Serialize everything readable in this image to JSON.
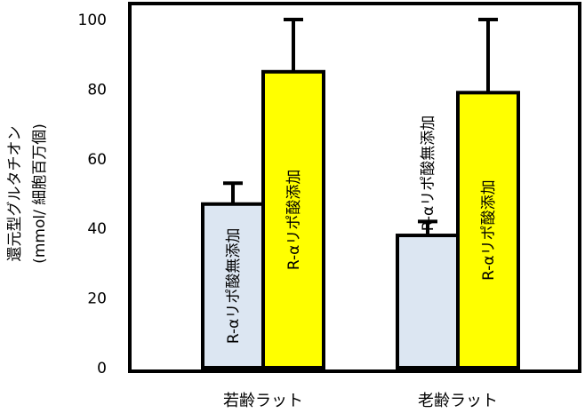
{
  "chart_data": {
    "type": "bar",
    "ylabel_line1": "還元型グルタチオン",
    "ylabel_line2": "(mmol/ 細胞百万個)",
    "ylim": [
      0,
      100
    ],
    "yticks": [
      "0",
      "20",
      "40",
      "60",
      "80",
      "100"
    ],
    "grid": false,
    "categories": [
      "若齢ラット",
      "老齢ラット"
    ],
    "series": [
      {
        "name": "R-αリポ酸無添加",
        "color": "#dce6f2",
        "values": [
          47,
          38
        ],
        "errors": [
          6,
          4
        ]
      },
      {
        "name": "R-αリポ酸添加",
        "color": "#ffff00",
        "values": [
          85,
          79
        ],
        "errors": [
          15,
          21
        ]
      }
    ],
    "bar_labels": [
      [
        "R-αリポ酸無添加",
        "R-αリポ酸添加"
      ],
      [
        "R-αリポ酸無添加",
        "R-αリポ酸添加"
      ]
    ]
  }
}
